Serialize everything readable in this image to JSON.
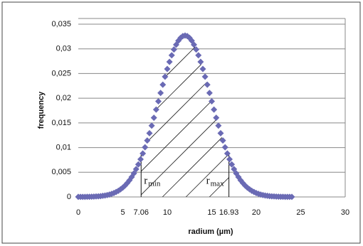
{
  "chart_data": {
    "type": "scatter",
    "x_label": "radium (µm)",
    "y_label": "frequency",
    "xlim": [
      0,
      30
    ],
    "ylim": [
      0,
      0.035
    ],
    "xticks": [
      0,
      5,
      7.06,
      10,
      15,
      16.93,
      20,
      25,
      30
    ],
    "yticks": [
      0,
      {
        "value": 0.005,
        "label": "0,005"
      },
      {
        "value": 0.01,
        "label": "0,01"
      },
      {
        "value": 0.015,
        "label": "0,015"
      },
      {
        "value": 0.02,
        "label": "0,02"
      },
      {
        "value": 0.025,
        "label": "0,025"
      },
      {
        "value": 0.03,
        "label": "0,03"
      },
      {
        "value": 0.035,
        "label": "0,035"
      }
    ],
    "grid": true,
    "color": "#6a6ab4",
    "x": [
      0,
      0.25,
      0.5,
      0.75,
      1,
      1.25,
      1.5,
      1.75,
      2,
      2.25,
      2.5,
      2.75,
      3,
      3.25,
      3.5,
      3.75,
      4,
      4.25,
      4.5,
      4.75,
      5,
      5.25,
      5.5,
      5.75,
      6,
      6.25,
      6.5,
      6.75,
      7,
      7.25,
      7.5,
      7.75,
      8,
      8.25,
      8.5,
      8.75,
      9,
      9.25,
      9.5,
      9.75,
      10,
      10.25,
      10.5,
      10.75,
      11,
      11.25,
      11.5,
      11.75,
      12,
      12.25,
      12.5,
      12.75,
      13,
      13.25,
      13.5,
      13.75,
      14,
      14.25,
      14.5,
      14.75,
      15,
      15.25,
      15.5,
      15.75,
      16,
      16.25,
      16.5,
      16.75,
      17,
      17.25,
      17.5,
      17.75,
      18,
      18.25,
      18.5,
      18.75,
      19,
      19.25,
      19.5,
      19.75,
      20,
      20.25,
      20.5,
      20.75,
      21,
      21.25,
      21.5,
      21.75,
      22,
      22.25,
      22.5,
      22.75,
      23,
      23.25,
      23.5,
      23.75,
      24
    ],
    "values": [
      1e-05,
      1e-05,
      2e-05,
      2e-05,
      3e-05,
      4e-05,
      5e-05,
      7e-05,
      0.0001,
      0.00013,
      0.00017,
      0.00023,
      0.00029,
      0.00038,
      0.00049,
      0.00063,
      0.00079,
      0.001,
      0.00124,
      0.00154,
      0.00189,
      0.00231,
      0.0028,
      0.00337,
      0.00403,
      0.00478,
      0.00563,
      0.00659,
      0.00764,
      0.00881,
      0.01007,
      0.01144,
      0.0129,
      0.01444,
      0.01604,
      0.01769,
      0.01938,
      0.02107,
      0.02274,
      0.02436,
      0.02592,
      0.02737,
      0.02869,
      0.02986,
      0.03085,
      0.03165,
      0.03223,
      0.03258,
      0.0327,
      0.03258,
      0.03223,
      0.03165,
      0.03085,
      0.02986,
      0.02869,
      0.02737,
      0.02592,
      0.02436,
      0.02274,
      0.02107,
      0.01938,
      0.01769,
      0.01604,
      0.01444,
      0.0129,
      0.01144,
      0.01007,
      0.00881,
      0.00764,
      0.00659,
      0.00563,
      0.00478,
      0.00403,
      0.00337,
      0.0028,
      0.00231,
      0.00189,
      0.00154,
      0.00124,
      0.001,
      0.00079,
      0.00063,
      0.00049,
      0.00038,
      0.00029,
      0.00023,
      0.00017,
      0.00013,
      0.0001,
      7e-05,
      5e-05,
      4e-05,
      3e-05,
      2e-05,
      2e-05,
      1e-05,
      1e-05
    ],
    "markers": [
      {
        "x": 7.06,
        "label": "r",
        "subscript": "min"
      },
      {
        "x": 16.93,
        "label": "r",
        "subscript": "max"
      }
    ]
  }
}
